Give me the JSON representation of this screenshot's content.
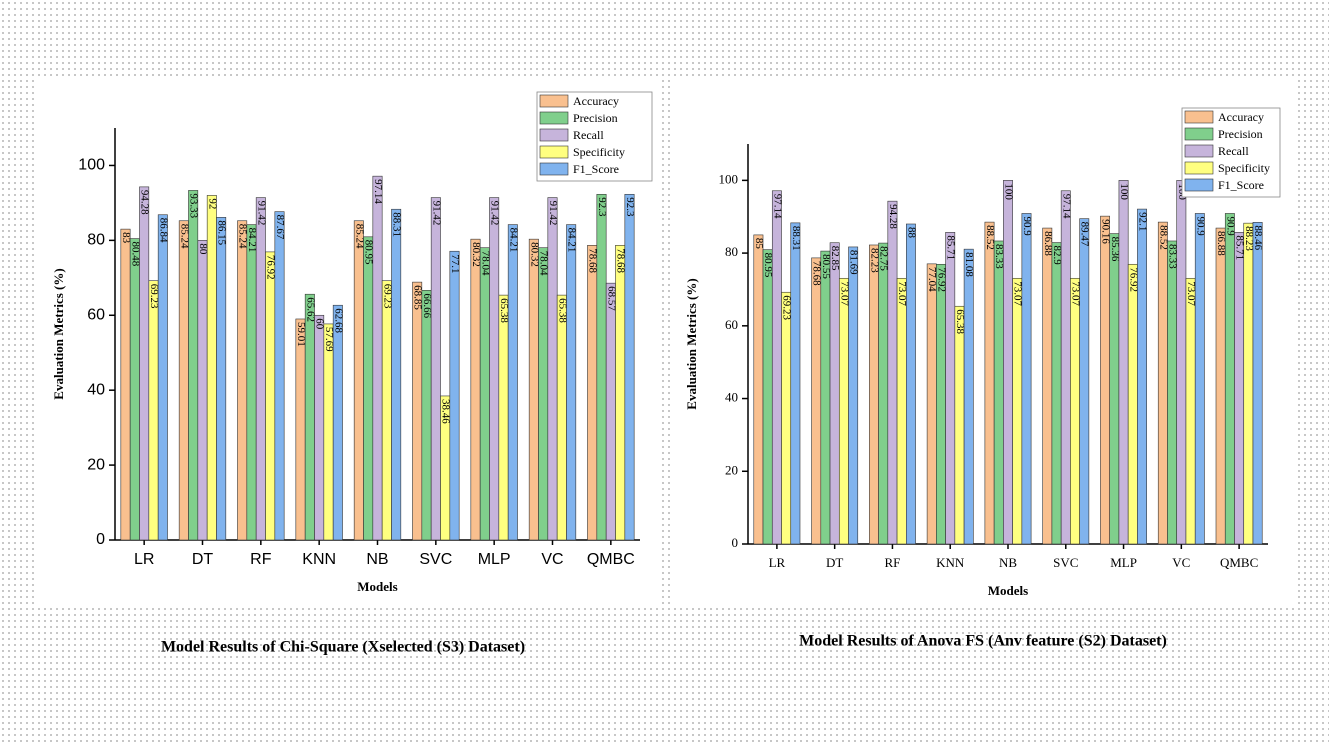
{
  "chart_data": [
    {
      "type": "bar",
      "title": "Model Results of Chi-Square (Xselected (S3) Dataset)",
      "x_label": "Models",
      "y_label": "Evaluation Metrics (%)",
      "categories": [
        "LR",
        "DT",
        "RF",
        "KNN",
        "NB",
        "SVC",
        "MLP",
        "VC",
        "QMBC"
      ],
      "series": [
        {
          "name": "Accuracy",
          "color": "#f9c08f",
          "values": [
            83,
            85.24,
            85.24,
            59.01,
            85.24,
            68.85,
            80.32,
            80.32,
            78.68
          ]
        },
        {
          "name": "Precision",
          "color": "#80cf8c",
          "values": [
            80.48,
            93.33,
            84.21,
            65.62,
            80.95,
            66.66,
            78.04,
            78.04,
            92.3
          ]
        },
        {
          "name": "Recall",
          "color": "#c6b4db",
          "values": [
            94.28,
            80,
            91.42,
            60,
            97.14,
            91.42,
            91.42,
            91.42,
            68.57
          ]
        },
        {
          "name": "Specificity",
          "color": "#ffff80",
          "values": [
            69.23,
            92,
            76.92,
            57.69,
            69.23,
            38.46,
            65.38,
            65.38,
            78.68
          ]
        },
        {
          "name": "F1_Score",
          "color": "#80b3ee",
          "values": [
            86.84,
            86.15,
            87.67,
            62.68,
            88.31,
            77.1,
            84.21,
            84.21,
            92.3
          ]
        }
      ],
      "ylim": [
        0,
        110
      ],
      "yticks": [
        0,
        20,
        40,
        60,
        80,
        100
      ],
      "legend": "upper right"
    },
    {
      "type": "bar",
      "title": "Model Results of Anova FS (Anv feature (S2) Dataset)",
      "x_label": "Models",
      "y_label": "Evaluation Metrics (%)",
      "categories": [
        "LR",
        "DT",
        "RF",
        "KNN",
        "NB",
        "SVC",
        "MLP",
        "VC",
        "QMBC"
      ],
      "series": [
        {
          "name": "Accuracy",
          "color": "#f9c08f",
          "values": [
            85,
            78.68,
            82.23,
            77.04,
            88.52,
            86.88,
            90.16,
            88.52,
            86.88
          ]
        },
        {
          "name": "Precision",
          "color": "#80cf8c",
          "values": [
            80.95,
            80.55,
            82.75,
            76.92,
            83.33,
            82.9,
            85.36,
            83.33,
            90.9
          ]
        },
        {
          "name": "Recall",
          "color": "#c6b4db",
          "values": [
            97.14,
            82.85,
            94.28,
            85.71,
            100,
            97.14,
            100,
            100,
            85.71
          ]
        },
        {
          "name": "Specificity",
          "color": "#ffff80",
          "values": [
            69.23,
            73.07,
            73.07,
            65.38,
            73.07,
            73.07,
            76.92,
            73.07,
            88.23
          ]
        },
        {
          "name": "F1_Score",
          "color": "#80b3ee",
          "values": [
            88.31,
            81.69,
            88,
            81.08,
            90.9,
            89.47,
            92.1,
            90.9,
            88.46
          ]
        }
      ],
      "ylim": [
        0,
        110
      ],
      "yticks": [
        0,
        20,
        40,
        60,
        80,
        100
      ],
      "legend": "upper right"
    }
  ]
}
